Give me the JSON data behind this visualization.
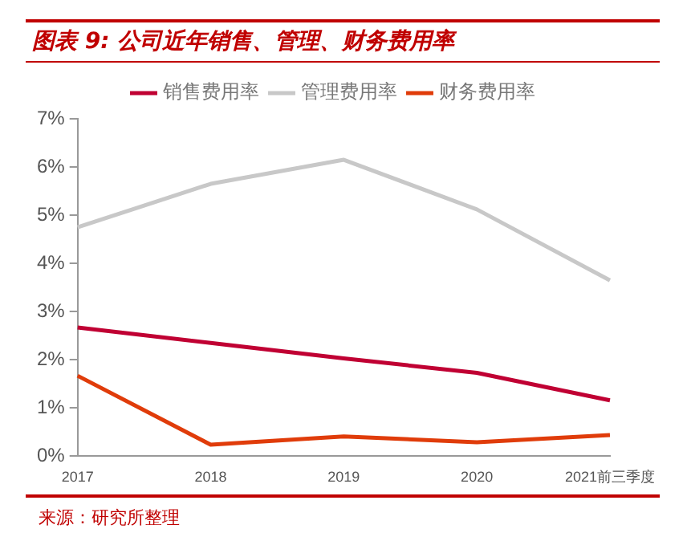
{
  "chart_data": {
    "type": "line",
    "title": "图表 9:  公司近年销售、管理、财务费用率",
    "categories": [
      "2017",
      "2018",
      "2019",
      "2020",
      "2021前三季度"
    ],
    "series": [
      {
        "name": "销售费用率",
        "color": "#c00033",
        "values": [
          2.67,
          2.35,
          2.03,
          1.73,
          1.16
        ]
      },
      {
        "name": "管理费用率",
        "color": "#c8c8c8",
        "values": [
          4.75,
          5.65,
          6.15,
          5.12,
          3.65
        ]
      },
      {
        "name": "财务费用率",
        "color": "#e03c0a",
        "values": [
          1.67,
          0.24,
          0.41,
          0.29,
          0.44
        ]
      }
    ],
    "ylim": [
      0,
      7
    ],
    "yticks": [
      {
        "value": 0,
        "label": "0%"
      },
      {
        "value": 1,
        "label": "1%"
      },
      {
        "value": 2,
        "label": "2%"
      },
      {
        "value": 3,
        "label": "3%"
      },
      {
        "value": 4,
        "label": "4%"
      },
      {
        "value": 5,
        "label": "5%"
      },
      {
        "value": 6,
        "label": "6%"
      },
      {
        "value": 7,
        "label": "7%"
      }
    ],
    "grid": false,
    "legend": "top",
    "marker": "none",
    "line_style": "solid",
    "annotations": [
      "来源：研究所整理"
    ]
  }
}
